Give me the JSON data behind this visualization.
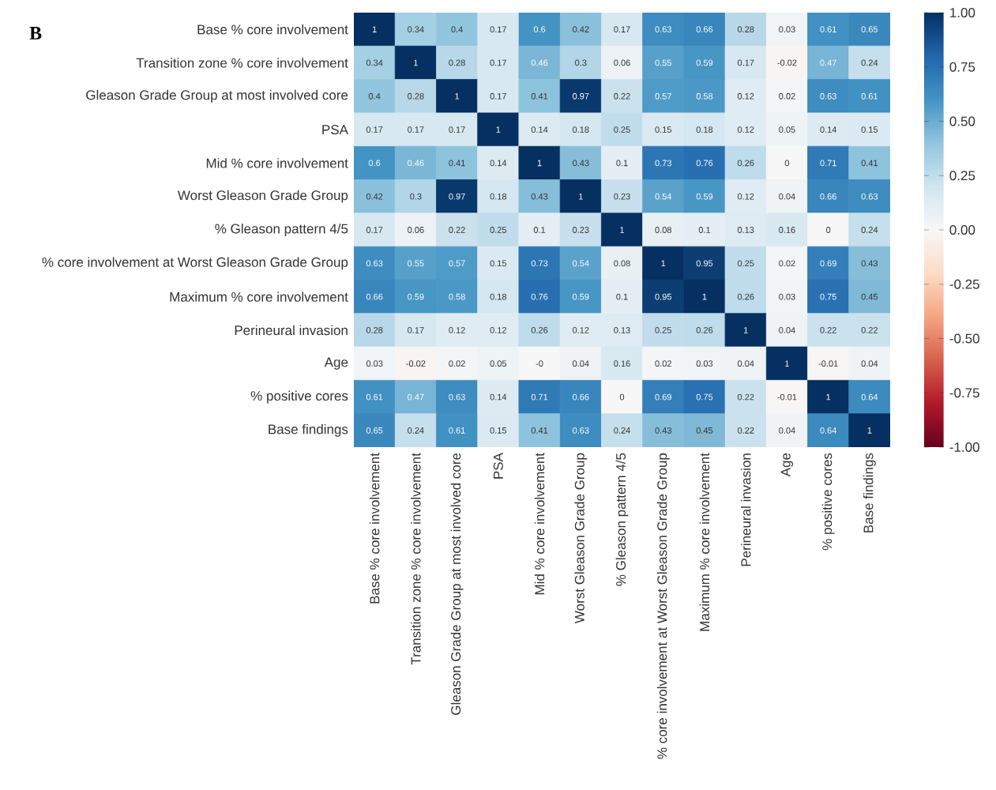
{
  "chart_data": {
    "type": "heatmap",
    "title": "B",
    "categories": [
      "Base % core involvement",
      "Transition zone % core involvement",
      "Gleason Grade Group at most involved core",
      "PSA",
      "Mid % core involvement",
      "Worst Gleason Grade Group",
      "% Gleason pattern 4/5",
      "% core involvement at Worst Gleason Grade Group",
      "Maximum % core involvement",
      "Perineural invasion",
      "Age",
      "% positive cores",
      "Base findings"
    ],
    "y_categories": [
      "Base % core involvement",
      "Transition zone % core involvement",
      "Gleason Grade Group at most involved core",
      "PSA",
      "Mid % core involvement",
      "Worst Gleason Grade Group",
      "% Gleason pattern 4/5",
      "% core involvement at Worst Gleason Grade Group",
      "Maximum % core involvement",
      "Perineural invasion",
      "Age",
      "% positive cores",
      "Base findings"
    ],
    "cells": [
      [
        1,
        0.34,
        0.4,
        0.17,
        0.6,
        0.42,
        0.17,
        0.63,
        0.66,
        0.28,
        0.03,
        0.61,
        0.65
      ],
      [
        0.34,
        1,
        0.28,
        0.17,
        0.46,
        0.3,
        0.06,
        0.55,
        0.59,
        0.17,
        -0.02,
        0.47,
        0.24
      ],
      [
        0.4,
        0.28,
        1,
        0.17,
        0.41,
        0.97,
        0.22,
        0.57,
        0.58,
        0.12,
        0.02,
        0.63,
        0.61
      ],
      [
        0.17,
        0.17,
        0.17,
        1,
        0.14,
        0.18,
        0.25,
        0.15,
        0.18,
        0.12,
        0.05,
        0.14,
        0.15
      ],
      [
        0.6,
        0.46,
        0.41,
        0.14,
        1,
        0.43,
        0.1,
        0.73,
        0.76,
        0.26,
        0,
        0.71,
        0.41
      ],
      [
        0.42,
        0.3,
        0.97,
        0.18,
        0.43,
        1,
        0.23,
        0.54,
        0.59,
        0.12,
        0.04,
        0.66,
        0.63
      ],
      [
        0.17,
        0.06,
        0.22,
        0.25,
        0.1,
        0.23,
        1,
        0.08,
        0.1,
        0.13,
        0.16,
        0,
        0.24
      ],
      [
        0.63,
        0.55,
        0.57,
        0.15,
        0.73,
        0.54,
        0.08,
        1,
        0.95,
        0.25,
        0.02,
        0.69,
        0.43
      ],
      [
        0.66,
        0.59,
        0.58,
        0.18,
        0.76,
        0.59,
        0.1,
        0.95,
        1,
        0.26,
        0.03,
        0.75,
        0.45
      ],
      [
        0.28,
        0.17,
        0.12,
        0.12,
        0.26,
        0.12,
        0.13,
        0.25,
        0.26,
        1,
        0.04,
        0.22,
        0.22
      ],
      [
        0.03,
        -0.02,
        0.02,
        0.05,
        0,
        0.04,
        0.16,
        0.02,
        0.03,
        0.04,
        1,
        -0.01,
        0.04
      ],
      [
        0.61,
        0.47,
        0.63,
        0.14,
        0.71,
        0.66,
        0,
        0.69,
        0.75,
        0.22,
        -0.01,
        1,
        0.64
      ],
      [
        0.65,
        0.24,
        0.61,
        0.15,
        0.41,
        0.63,
        0.24,
        0.43,
        0.45,
        0.22,
        0.04,
        0.64,
        1
      ]
    ],
    "cell_labels": [
      [
        "1",
        "0.34",
        "0.4",
        "0.17",
        "0.6",
        "0.42",
        "0.17",
        "0.63",
        "0.66",
        "0.28",
        "0.03",
        "0.61",
        "0.65"
      ],
      [
        "0.34",
        "1",
        "0.28",
        "0.17",
        "0.46",
        "0.3",
        "0.06",
        "0.55",
        "0.59",
        "0.17",
        "-0.02",
        "0.47",
        "0.24"
      ],
      [
        "0.4",
        "0.28",
        "1",
        "0.17",
        "0.41",
        "0.97",
        "0.22",
        "0.57",
        "0.58",
        "0.12",
        "0.02",
        "0.63",
        "0.61"
      ],
      [
        "0.17",
        "0.17",
        "0.17",
        "1",
        "0.14",
        "0.18",
        "0.25",
        "0.15",
        "0.18",
        "0.12",
        "0.05",
        "0.14",
        "0.15"
      ],
      [
        "0.6",
        "0.46",
        "0.41",
        "0.14",
        "1",
        "0.43",
        "0.1",
        "0.73",
        "0.76",
        "0.26",
        "0",
        "0.71",
        "0.41"
      ],
      [
        "0.42",
        "0.3",
        "0.97",
        "0.18",
        "0.43",
        "1",
        "0.23",
        "0.54",
        "0.59",
        "0.12",
        "0.04",
        "0.66",
        "0.63"
      ],
      [
        "0.17",
        "0.06",
        "0.22",
        "0.25",
        "0.1",
        "0.23",
        "1",
        "0.08",
        "0.1",
        "0.13",
        "0.16",
        "0",
        "0.24"
      ],
      [
        "0.63",
        "0.55",
        "0.57",
        "0.15",
        "0.73",
        "0.54",
        "0.08",
        "1",
        "0.95",
        "0.25",
        "0.02",
        "0.69",
        "0.43"
      ],
      [
        "0.66",
        "0.59",
        "0.58",
        "0.18",
        "0.76",
        "0.59",
        "0.1",
        "0.95",
        "1",
        "0.26",
        "0.03",
        "0.75",
        "0.45"
      ],
      [
        "0.28",
        "0.17",
        "0.12",
        "0.12",
        "0.26",
        "0.12",
        "0.13",
        "0.25",
        "0.26",
        "1",
        "0.04",
        "0.22",
        "0.22"
      ],
      [
        "0.03",
        "-0.02",
        "0.02",
        "0.05",
        "-0",
        "0.04",
        "0.16",
        "0.02",
        "0.03",
        "0.04",
        "1",
        "-0.01",
        "0.04"
      ],
      [
        "0.61",
        "0.47",
        "0.63",
        "0.14",
        "0.71",
        "0.66",
        "0",
        "0.69",
        "0.75",
        "0.22",
        "-0.01",
        "1",
        "0.64"
      ],
      [
        "0.65",
        "0.24",
        "0.61",
        "0.15",
        "0.41",
        "0.63",
        "0.24",
        "0.43",
        "0.45",
        "0.22",
        "0.04",
        "0.64",
        "1"
      ]
    ],
    "clim": [
      -1,
      1
    ],
    "cticks": [
      {
        "value": -1,
        "label": "-1.00"
      },
      {
        "value": -0.75,
        "label": "-0.75"
      },
      {
        "value": -0.5,
        "label": "-0.50"
      },
      {
        "value": -0.25,
        "label": "-0.25"
      },
      {
        "value": 0,
        "label": "0.00"
      },
      {
        "value": 0.25,
        "label": "0.25"
      },
      {
        "value": 0.5,
        "label": "0.50"
      },
      {
        "value": 0.75,
        "label": "0.75"
      },
      {
        "value": 1,
        "label": "1.00"
      }
    ]
  }
}
